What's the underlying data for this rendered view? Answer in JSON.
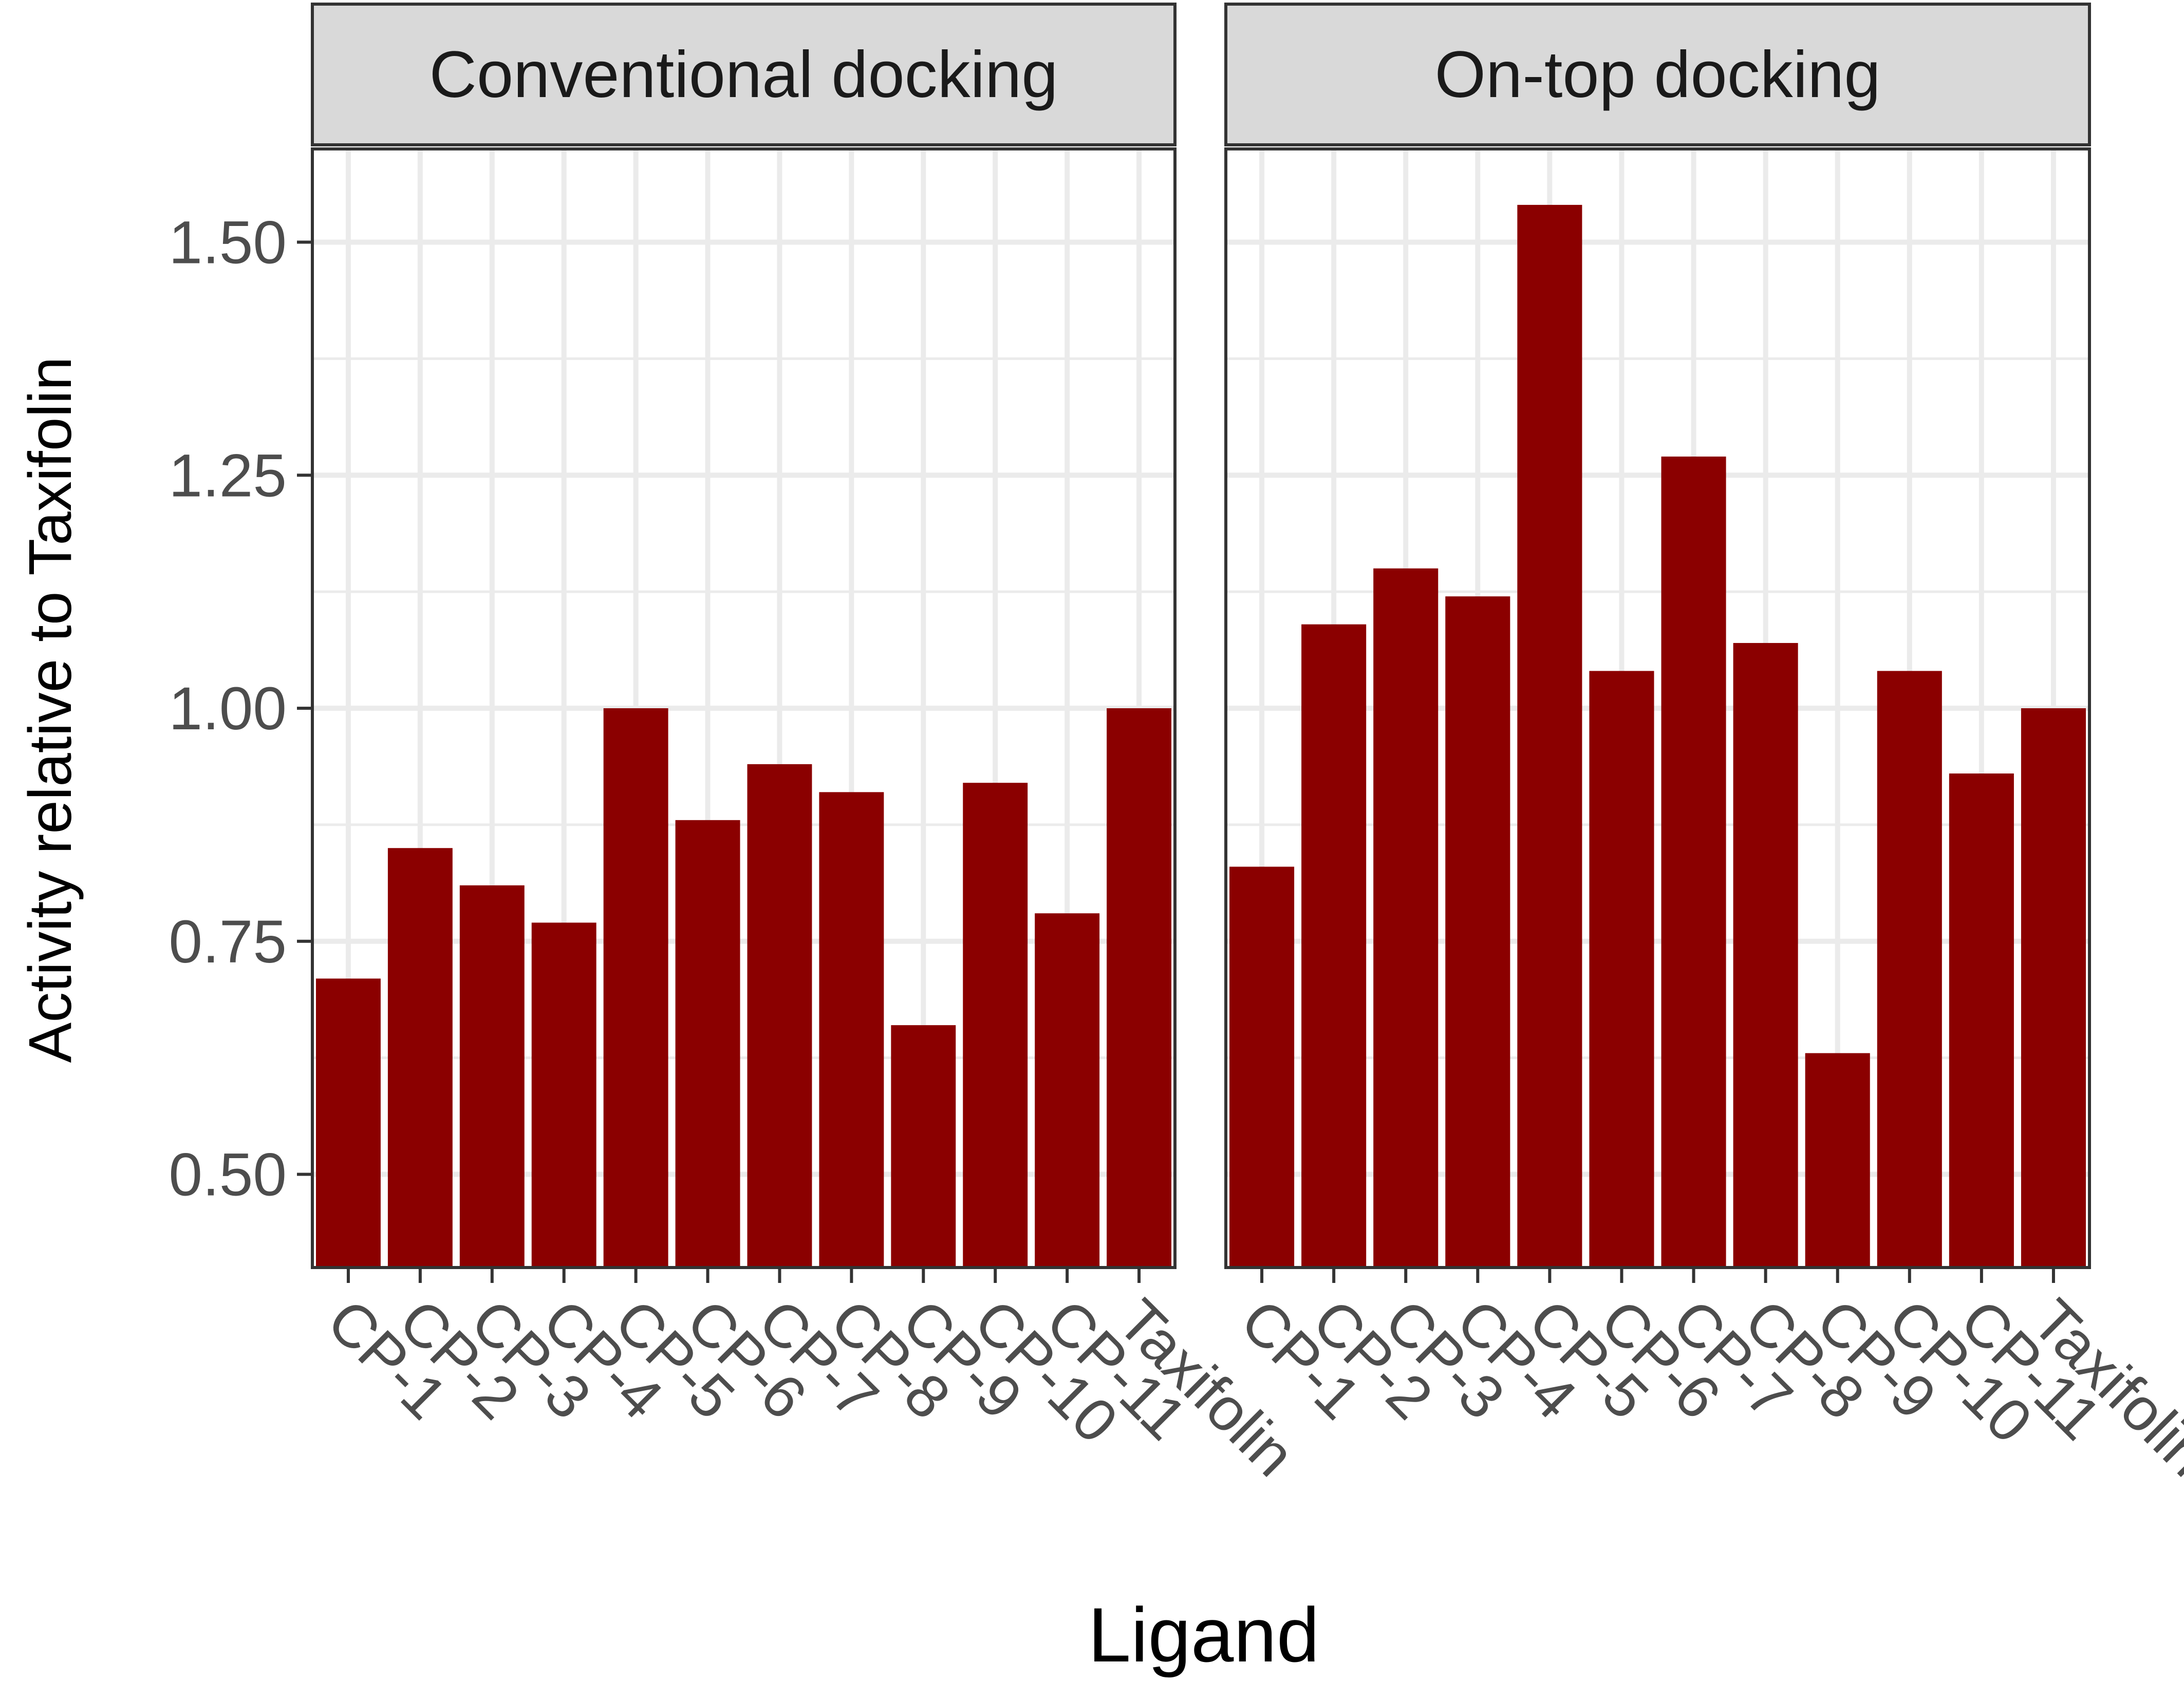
{
  "chart_data": {
    "type": "bar",
    "xlabel": "Ligand",
    "ylabel": "Activity relative to Taxifolin",
    "ylim": [
      0.4,
      1.6
    ],
    "yticks": [
      "0.50",
      "0.75",
      "1.00",
      "1.25",
      "1.50"
    ],
    "ytick_values": [
      0.5,
      0.75,
      1.0,
      1.25,
      1.5
    ],
    "grid": true,
    "bar_color": "#8B0000",
    "categories": [
      "CP-1",
      "CP-2",
      "CP-3",
      "CP-4",
      "CP-5",
      "CP-6",
      "CP-7",
      "CP-8",
      "CP-9",
      "CP-10",
      "CP-11",
      "Taxifolin"
    ],
    "panels": [
      {
        "title": "Conventional docking",
        "values": [
          0.71,
          0.85,
          0.81,
          0.77,
          1.0,
          0.88,
          0.94,
          0.91,
          0.66,
          0.92,
          0.78,
          1.0
        ]
      },
      {
        "title": "On-top docking",
        "values": [
          0.83,
          1.09,
          1.15,
          1.12,
          1.54,
          1.04,
          1.27,
          1.07,
          0.63,
          1.04,
          0.93,
          1.0
        ]
      }
    ]
  }
}
